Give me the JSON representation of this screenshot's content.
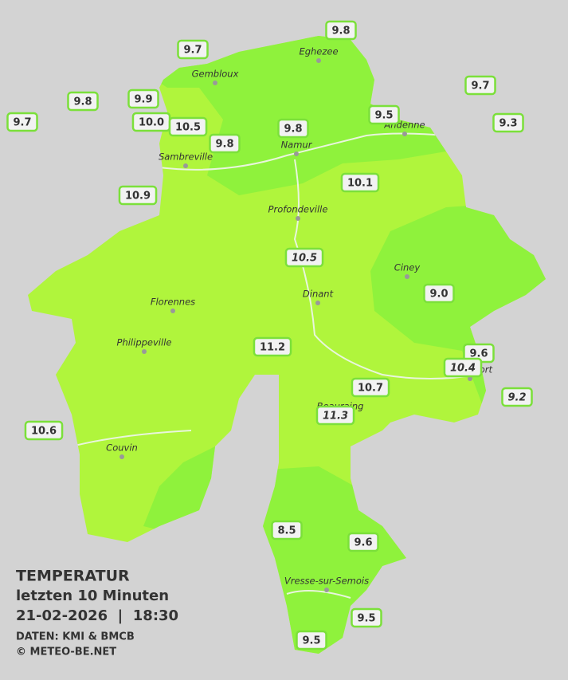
{
  "legend": {
    "title": "TEMPERATUR",
    "period": "letzten 10 Minuten",
    "datetime": "21-02-2026  |  18:30",
    "source": "DATEN: KMI & BMCB",
    "copyright": "© METEO-BE.NET"
  },
  "cities": [
    "Eghezee",
    "Gembloux",
    "Andenne",
    "Namur",
    "Sambreville",
    "Profondeville",
    "Ciney",
    "Florennes",
    "Dinant",
    "Philippeville",
    "Rochefort",
    "Beauraing",
    "Couvin",
    "Vresse-sur-Semois"
  ],
  "stations": [
    {
      "label": "9.8",
      "italic": false
    },
    {
      "label": "9.7",
      "italic": false
    },
    {
      "label": "9.7",
      "italic": false
    },
    {
      "label": "9.8",
      "italic": false
    },
    {
      "label": "9.9",
      "italic": false
    },
    {
      "label": "9.7",
      "italic": false
    },
    {
      "label": "10.0",
      "italic": false
    },
    {
      "label": "10.5",
      "italic": false
    },
    {
      "label": "9.8",
      "italic": false
    },
    {
      "label": "9.8",
      "italic": false
    },
    {
      "label": "9.5",
      "italic": false
    },
    {
      "label": "9.3",
      "italic": false
    },
    {
      "label": "10.1",
      "italic": false
    },
    {
      "label": "10.9",
      "italic": false
    },
    {
      "label": "10.5",
      "italic": true
    },
    {
      "label": "9.0",
      "italic": false
    },
    {
      "label": "11.2",
      "italic": false
    },
    {
      "label": "9.6",
      "italic": false
    },
    {
      "label": "10.4",
      "italic": true
    },
    {
      "label": "9.2",
      "italic": true
    },
    {
      "label": "10.7",
      "italic": false
    },
    {
      "label": "11.3",
      "italic": true
    },
    {
      "label": "10.6",
      "italic": false
    },
    {
      "label": "8.5",
      "italic": false
    },
    {
      "label": "9.6",
      "italic": false
    },
    {
      "label": "9.5",
      "italic": false
    },
    {
      "label": "9.5",
      "italic": false
    }
  ]
}
